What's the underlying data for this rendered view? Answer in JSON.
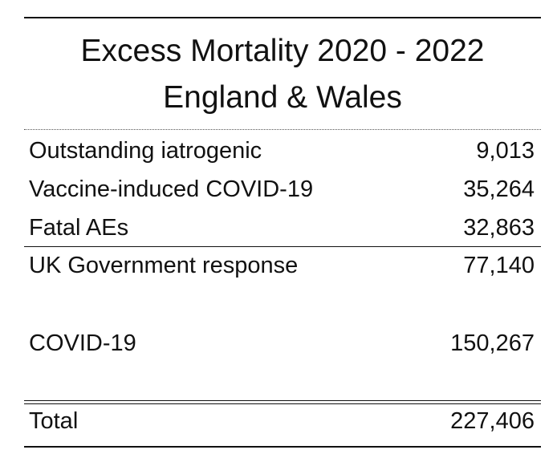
{
  "title": {
    "line1": "Excess Mortality 2020 - 2022",
    "line2": "England & Wales"
  },
  "rows": [
    {
      "label": "Outstanding iatrogenic",
      "value": "9,013"
    },
    {
      "label": "Vaccine-induced COVID-19",
      "value": "35,264"
    },
    {
      "label": "Fatal AEs",
      "value": "32,863"
    },
    {
      "label": "UK Government response",
      "value": "77,140"
    },
    {
      "label": "COVID-19",
      "value": "150,267"
    },
    {
      "label": "Total",
      "value": "227,406"
    }
  ]
}
